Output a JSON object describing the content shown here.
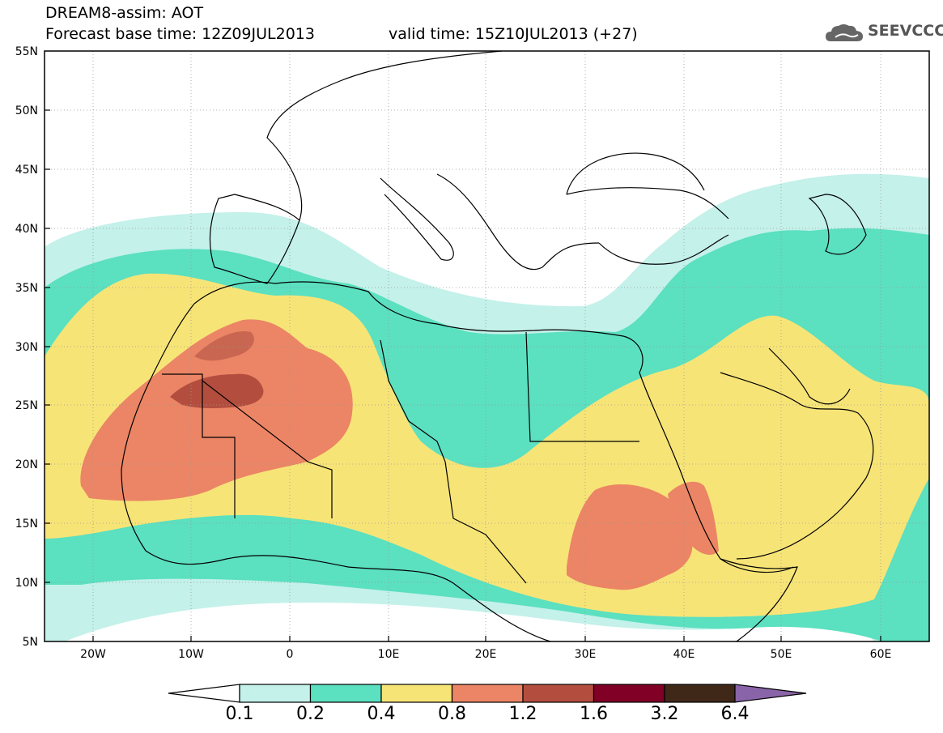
{
  "header": {
    "title_line1": "DREAM8-assim: AOT",
    "title_line2": "Forecast base time: 12Z09JUL2013",
    "valid_time": "valid time: 15Z10JUL2013 (+27)"
  },
  "logo": {
    "text": "SEEVCCC",
    "icon": "cloud-icon"
  },
  "map": {
    "lon_labels": [
      "20W",
      "10W",
      "0",
      "10E",
      "20E",
      "30E",
      "40E",
      "50E",
      "60E"
    ],
    "lat_labels": [
      "55N",
      "50N",
      "45N",
      "40N",
      "35N",
      "30N",
      "25N",
      "20N",
      "15N",
      "10N",
      "5N"
    ],
    "lon_range": [
      -25,
      65
    ],
    "lat_range": [
      5,
      55
    ]
  },
  "legend": {
    "labels": [
      "0.1",
      "0.2",
      "0.4",
      "0.8",
      "1.2",
      "1.6",
      "3.2",
      "6.4"
    ],
    "colors": [
      "#c4f1ea",
      "#5be0c0",
      "#f7e477",
      "#eb8565",
      "#b34e3f",
      "#800026",
      "#402818",
      "#8a64a8"
    ]
  }
}
